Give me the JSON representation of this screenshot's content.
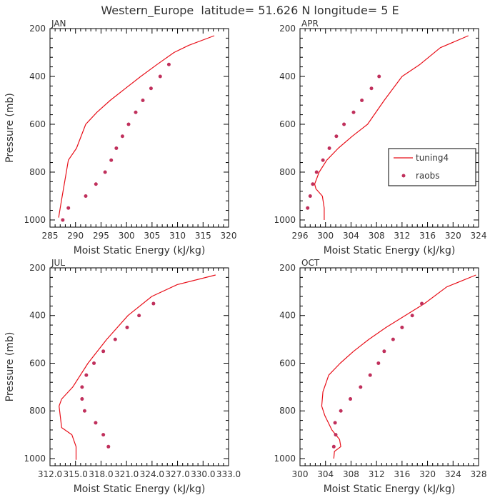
{
  "title": "Western_Europe  latitude= 51.626 N longitude= 5 E",
  "colors": {
    "line": "#e8101a",
    "points": "#c0305c",
    "axis": "#000000"
  },
  "legend": {
    "line_label": "tuning4",
    "points_label": "raobs",
    "panel": 1,
    "placement": "right-middle"
  },
  "chart_data": [
    {
      "type": "line",
      "panel": "JAN",
      "xlabel": "Moist Static Energy (kJ/kg)",
      "ylabel": "Pressure (mb)",
      "xlim": [
        285,
        320
      ],
      "ylim": [
        1030,
        200
      ],
      "xticks": [
        285,
        290,
        295,
        300,
        305,
        310,
        315,
        320
      ],
      "xtick_labels": [
        "285",
        "290",
        "295",
        "300",
        "305",
        "310",
        "315",
        "320"
      ],
      "yticks": [
        200,
        400,
        600,
        800,
        1000
      ],
      "ytick_labels": [
        "200",
        "400",
        "600",
        "800",
        "1000"
      ],
      "series": [
        {
          "name": "tuning4",
          "kind": "line",
          "x": [
            286.7,
            287.0,
            287.4,
            287.8,
            288.6,
            290.2,
            292.0,
            294.2,
            296.8,
            299.8,
            302.8,
            306.0,
            309.3,
            312.2,
            317.2
          ],
          "y": [
            990,
            950,
            900,
            850,
            750,
            700,
            600,
            550,
            500,
            450,
            400,
            350,
            300,
            270,
            230
          ]
        },
        {
          "name": "raobs",
          "kind": "scatter",
          "x": [
            287.5,
            288.6,
            292.0,
            294.0,
            295.8,
            297.0,
            298.0,
            299.2,
            300.4,
            301.8,
            303.2,
            304.8,
            306.6,
            308.3
          ],
          "y": [
            1000,
            950,
            900,
            850,
            800,
            750,
            700,
            650,
            600,
            550,
            500,
            450,
            400,
            350
          ]
        }
      ]
    },
    {
      "type": "line",
      "panel": "APR",
      "xlabel": "Moist Static Energy (kJ/kg)",
      "ylabel": "",
      "xlim": [
        296,
        324
      ],
      "ylim": [
        1030,
        200
      ],
      "xticks": [
        296,
        300,
        304,
        308,
        312,
        316,
        320,
        324
      ],
      "xtick_labels": [
        "296",
        "300",
        "304",
        "308",
        "312",
        "316",
        "320",
        "324"
      ],
      "yticks": [
        200,
        400,
        600,
        800,
        1000
      ],
      "ytick_labels": [
        "200",
        "400",
        "600",
        "800",
        "1000"
      ],
      "series": [
        {
          "name": "tuning4",
          "kind": "line",
          "x": [
            299.8,
            299.8,
            299.5,
            298.5,
            298.3,
            299.0,
            300.2,
            302.0,
            304.2,
            306.6,
            309.2,
            312.0,
            314.8,
            318.0,
            322.4
          ],
          "y": [
            1000,
            950,
            900,
            870,
            850,
            800,
            750,
            700,
            650,
            600,
            500,
            400,
            350,
            280,
            230
          ]
        },
        {
          "name": "raobs",
          "kind": "scatter",
          "x": [
            297.2,
            297.6,
            298.0,
            298.6,
            299.6,
            300.6,
            301.7,
            302.9,
            304.4,
            305.7,
            307.2,
            308.4
          ],
          "y": [
            950,
            900,
            850,
            800,
            750,
            700,
            650,
            600,
            550,
            500,
            450,
            400
          ]
        }
      ]
    },
    {
      "type": "line",
      "panel": "JUL",
      "xlabel": "Moist Static Energy (kJ/kg)",
      "ylabel": "Pressure (mb)",
      "xlim": [
        312.03,
        333.03
      ],
      "ylim": [
        1030,
        200
      ],
      "xticks": [
        312.03,
        315.03,
        318.03,
        321.03,
        324.03,
        327.03,
        330.03,
        333.03
      ],
      "xtick_labels": [
        "312.0",
        "315.0",
        "318.0",
        "321.0",
        "324.0",
        "327.0",
        "330.0",
        "333.0"
      ],
      "yticks": [
        200,
        400,
        600,
        800,
        1000
      ],
      "ytick_labels": [
        "200",
        "400",
        "600",
        "800",
        "1000"
      ],
      "series": [
        {
          "name": "tuning4",
          "kind": "line",
          "x": [
            315.1,
            315.1,
            314.6,
            313.4,
            313.1,
            313.4,
            314.7,
            316.5,
            318.7,
            321.2,
            324.0,
            327.0,
            331.5
          ],
          "y": [
            1005,
            950,
            900,
            870,
            780,
            750,
            700,
            600,
            500,
            400,
            320,
            270,
            230
          ]
        },
        {
          "name": "raobs",
          "kind": "scatter",
          "x": [
            318.9,
            318.3,
            317.4,
            316.1,
            315.8,
            315.8,
            316.3,
            317.2,
            318.3,
            319.7,
            321.1,
            322.5,
            324.2
          ],
          "y": [
            950,
            900,
            850,
            800,
            750,
            700,
            650,
            600,
            550,
            500,
            450,
            400,
            350
          ]
        }
      ]
    },
    {
      "type": "line",
      "panel": "OCT",
      "xlabel": "Moist Static Energy (kJ/kg)",
      "ylabel": "",
      "xlim": [
        300,
        328
      ],
      "ylim": [
        1030,
        200
      ],
      "xticks": [
        300,
        304,
        308,
        312,
        316,
        320,
        324,
        328
      ],
      "xtick_labels": [
        "300",
        "304",
        "308",
        "312",
        "316",
        "320",
        "324",
        "328"
      ],
      "yticks": [
        200,
        400,
        600,
        800,
        1000
      ],
      "ytick_labels": [
        "200",
        "400",
        "600",
        "800",
        "1000"
      ],
      "series": [
        {
          "name": "tuning4",
          "kind": "line",
          "x": [
            305.3,
            305.4,
            306.4,
            306.2,
            305.0,
            303.9,
            303.4,
            303.6,
            304.5,
            306.3,
            308.4,
            310.8,
            313.5,
            316.5,
            319.5,
            323.0,
            327.6
          ],
          "y": [
            1000,
            970,
            950,
            920,
            880,
            820,
            780,
            720,
            650,
            600,
            550,
            500,
            450,
            400,
            350,
            280,
            230
          ]
        },
        {
          "name": "raobs",
          "kind": "scatter",
          "x": [
            305.3,
            305.6,
            305.5,
            306.4,
            307.9,
            309.5,
            311.0,
            312.3,
            313.2,
            314.6,
            316.0,
            317.6,
            319.1
          ],
          "y": [
            950,
            900,
            850,
            800,
            750,
            700,
            650,
            600,
            550,
            500,
            450,
            400,
            350
          ]
        }
      ]
    }
  ]
}
